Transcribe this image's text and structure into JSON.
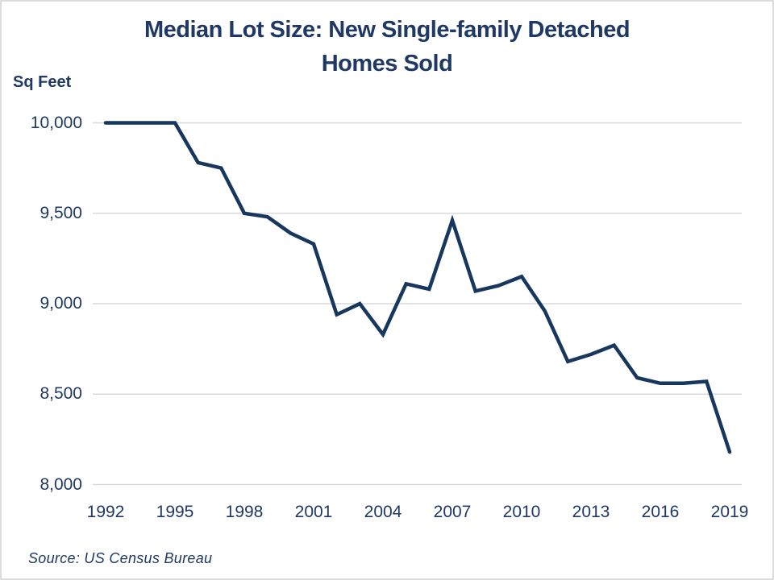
{
  "title": {
    "line1": "Median Lot Size: New Single-family Detached",
    "line2": "Homes Sold"
  },
  "y_axis_title": "Sq Feet",
  "source_note": "Source: US Census Bureau",
  "colors": {
    "line": "#17375e",
    "text": "#1f3864",
    "gridline": "#d9d9d9",
    "background": "#ffffff"
  },
  "chart_data": {
    "type": "line",
    "title": "Median Lot Size: New Single-family Detached Homes Sold",
    "xlabel": "",
    "ylabel": "Sq Feet",
    "ylim": [
      8000,
      10000
    ],
    "grid": "horizontal",
    "legend": "none",
    "x": [
      1992,
      1993,
      1994,
      1995,
      1996,
      1997,
      1998,
      1999,
      2000,
      2001,
      2002,
      2003,
      2004,
      2005,
      2006,
      2007,
      2008,
      2009,
      2010,
      2011,
      2012,
      2013,
      2014,
      2015,
      2016,
      2017,
      2018,
      2019
    ],
    "values": [
      10000,
      10000,
      10000,
      10000,
      9780,
      9750,
      9500,
      9480,
      9390,
      9330,
      8940,
      9000,
      8830,
      9110,
      9080,
      9460,
      9070,
      9100,
      9150,
      8960,
      8680,
      8720,
      8770,
      8590,
      8560,
      8560,
      8570,
      8180
    ],
    "yticks": [
      {
        "value": 10000,
        "label": "10,000"
      },
      {
        "value": 9500,
        "label": "9,500"
      },
      {
        "value": 9000,
        "label": "9,000"
      },
      {
        "value": 8500,
        "label": "8,500"
      },
      {
        "value": 8000,
        "label": "8,000"
      }
    ],
    "xticks": [
      {
        "value": 1992,
        "label": "1992"
      },
      {
        "value": 1995,
        "label": "1995"
      },
      {
        "value": 1998,
        "label": "1998"
      },
      {
        "value": 2001,
        "label": "2001"
      },
      {
        "value": 2004,
        "label": "2004"
      },
      {
        "value": 2007,
        "label": "2007"
      },
      {
        "value": 2010,
        "label": "2010"
      },
      {
        "value": 2013,
        "label": "2013"
      },
      {
        "value": 2016,
        "label": "2016"
      },
      {
        "value": 2019,
        "label": "2019"
      }
    ],
    "source": "US Census Bureau"
  }
}
